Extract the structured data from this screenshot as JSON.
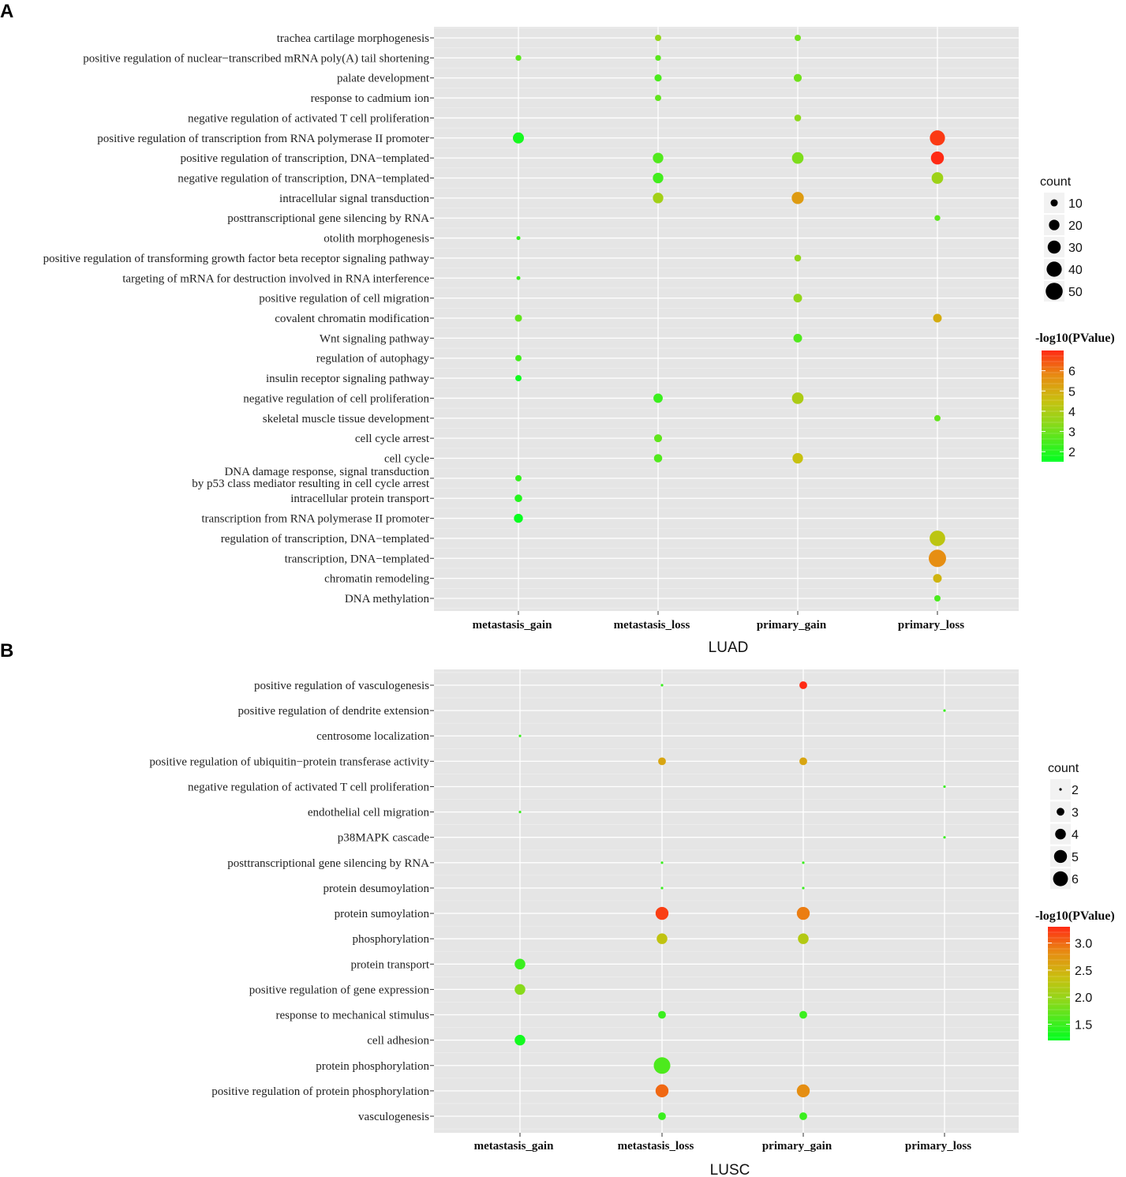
{
  "chart_data": [
    {
      "type": "scatter",
      "panel_letter": "A",
      "xlabel": "LUAD",
      "categories": [
        "metastasis_gain",
        "metastasis_loss",
        "primary_gain",
        "primary_loss"
      ],
      "terms": [
        [
          "trachea cartilage morphogenesis"
        ],
        [
          "positive regulation of nuclear−transcribed mRNA poly(A) tail shortening"
        ],
        [
          "palate development"
        ],
        [
          "response to cadmium ion"
        ],
        [
          "negative regulation of activated T cell proliferation"
        ],
        [
          "positive regulation of transcription from RNA polymerase II promoter"
        ],
        [
          "positive regulation of transcription, DNA−templated"
        ],
        [
          "negative regulation of transcription, DNA−templated"
        ],
        [
          "intracellular signal transduction"
        ],
        [
          "posttranscriptional gene silencing by RNA"
        ],
        [
          "otolith morphogenesis"
        ],
        [
          "positive regulation of transforming growth factor beta receptor signaling pathway"
        ],
        [
          "targeting of mRNA for destruction involved in RNA interference"
        ],
        [
          "positive regulation of cell migration"
        ],
        [
          "covalent chromatin modification"
        ],
        [
          "Wnt signaling pathway"
        ],
        [
          "regulation of autophagy"
        ],
        [
          "insulin receptor signaling pathway"
        ],
        [
          "negative regulation of cell proliferation"
        ],
        [
          "skeletal muscle tissue development"
        ],
        [
          "cell cycle arrest"
        ],
        [
          "cell cycle"
        ],
        [
          "DNA damage response, signal transduction",
          "by p53 class mediator resulting in cell cycle arrest"
        ],
        [
          "intracellular protein transport"
        ],
        [
          "transcription from RNA polymerase II promoter"
        ],
        [
          "regulation of transcription, DNA−templated"
        ],
        [
          "transcription, DNA−templated"
        ],
        [
          "chromatin remodeling"
        ],
        [
          "DNA methylation"
        ]
      ],
      "points": [
        {
          "term": 0,
          "cat": 1,
          "count": 8,
          "logp": 3.5
        },
        {
          "term": 0,
          "cat": 2,
          "count": 8,
          "logp": 3.0
        },
        {
          "term": 1,
          "cat": 0,
          "count": 7,
          "logp": 2.7
        },
        {
          "term": 1,
          "cat": 1,
          "count": 7,
          "logp": 2.7
        },
        {
          "term": 2,
          "cat": 1,
          "count": 10,
          "logp": 2.5
        },
        {
          "term": 2,
          "cat": 2,
          "count": 12,
          "logp": 3.0
        },
        {
          "term": 3,
          "cat": 1,
          "count": 8,
          "logp": 2.8
        },
        {
          "term": 4,
          "cat": 2,
          "count": 9,
          "logp": 3.4
        },
        {
          "term": 5,
          "cat": 0,
          "count": 22,
          "logp": 1.8
        },
        {
          "term": 5,
          "cat": 3,
          "count": 40,
          "logp": 6.8
        },
        {
          "term": 6,
          "cat": 1,
          "count": 20,
          "logp": 2.6
        },
        {
          "term": 6,
          "cat": 2,
          "count": 24,
          "logp": 3.2
        },
        {
          "term": 6,
          "cat": 3,
          "count": 30,
          "logp": 7.0
        },
        {
          "term": 7,
          "cat": 1,
          "count": 20,
          "logp": 2.4
        },
        {
          "term": 7,
          "cat": 3,
          "count": 24,
          "logp": 3.7
        },
        {
          "term": 8,
          "cat": 1,
          "count": 20,
          "logp": 3.8
        },
        {
          "term": 8,
          "cat": 2,
          "count": 26,
          "logp": 5.4
        },
        {
          "term": 9,
          "cat": 3,
          "count": 7,
          "logp": 2.7
        },
        {
          "term": 10,
          "cat": 0,
          "count": 4,
          "logp": 2.2
        },
        {
          "term": 11,
          "cat": 2,
          "count": 9,
          "logp": 3.5
        },
        {
          "term": 12,
          "cat": 0,
          "count": 4,
          "logp": 2.3
        },
        {
          "term": 13,
          "cat": 2,
          "count": 14,
          "logp": 3.5
        },
        {
          "term": 14,
          "cat": 0,
          "count": 10,
          "logp": 2.8
        },
        {
          "term": 14,
          "cat": 3,
          "count": 14,
          "logp": 5.0
        },
        {
          "term": 15,
          "cat": 2,
          "count": 14,
          "logp": 2.6
        },
        {
          "term": 16,
          "cat": 0,
          "count": 8,
          "logp": 2.4
        },
        {
          "term": 17,
          "cat": 0,
          "count": 8,
          "logp": 1.7
        },
        {
          "term": 18,
          "cat": 1,
          "count": 16,
          "logp": 2.3
        },
        {
          "term": 18,
          "cat": 2,
          "count": 24,
          "logp": 4.0
        },
        {
          "term": 19,
          "cat": 3,
          "count": 8,
          "logp": 2.8
        },
        {
          "term": 20,
          "cat": 1,
          "count": 12,
          "logp": 2.8
        },
        {
          "term": 21,
          "cat": 1,
          "count": 13,
          "logp": 2.6
        },
        {
          "term": 21,
          "cat": 2,
          "count": 20,
          "logp": 4.5
        },
        {
          "term": 22,
          "cat": 0,
          "count": 8,
          "logp": 2.2
        },
        {
          "term": 23,
          "cat": 0,
          "count": 11,
          "logp": 2.0
        },
        {
          "term": 24,
          "cat": 0,
          "count": 15,
          "logp": 1.6
        },
        {
          "term": 25,
          "cat": 3,
          "count": 42,
          "logp": 4.3
        },
        {
          "term": 26,
          "cat": 3,
          "count": 52,
          "logp": 5.7
        },
        {
          "term": 27,
          "cat": 3,
          "count": 14,
          "logp": 4.8
        },
        {
          "term": 28,
          "cat": 3,
          "count": 8,
          "logp": 2.5
        }
      ],
      "size_legend": {
        "title": "count",
        "values": [
          10,
          20,
          30,
          40,
          50
        ]
      },
      "color_legend": {
        "title": "-log10(PValue)",
        "range": [
          1.5,
          7.0
        ],
        "ticks": [
          2,
          3,
          4,
          5,
          6
        ],
        "tick_labels": [
          "2",
          "3",
          "4",
          "5",
          "6"
        ]
      }
    },
    {
      "type": "scatter",
      "panel_letter": "B",
      "xlabel": "LUSC",
      "categories": [
        "metastasis_gain",
        "metastasis_loss",
        "primary_gain",
        "primary_loss"
      ],
      "terms": [
        [
          "positive regulation of vasculogenesis"
        ],
        [
          "positive regulation of dendrite extension"
        ],
        [
          "centrosome localization"
        ],
        [
          "positive regulation of ubiquitin−protein transferase activity"
        ],
        [
          "negative regulation of activated T cell proliferation"
        ],
        [
          "endothelial cell migration"
        ],
        [
          "p38MAPK cascade"
        ],
        [
          "posttranscriptional gene silencing by RNA"
        ],
        [
          "protein desumoylation"
        ],
        [
          "protein sumoylation"
        ],
        [
          "phosphorylation"
        ],
        [
          "protein transport"
        ],
        [
          "positive regulation of gene expression"
        ],
        [
          "response to mechanical stimulus"
        ],
        [
          "cell adhesion"
        ],
        [
          "protein phosphorylation"
        ],
        [
          "positive regulation of protein phosphorylation"
        ],
        [
          "vasculogenesis"
        ]
      ],
      "points": [
        {
          "term": 0,
          "cat": 1,
          "count": 2,
          "logp": 1.5
        },
        {
          "term": 0,
          "cat": 2,
          "count": 3,
          "logp": 3.3
        },
        {
          "term": 1,
          "cat": 3,
          "count": 2,
          "logp": 1.5
        },
        {
          "term": 2,
          "cat": 0,
          "count": 2,
          "logp": 1.5
        },
        {
          "term": 3,
          "cat": 1,
          "count": 3,
          "logp": 2.6
        },
        {
          "term": 3,
          "cat": 2,
          "count": 3,
          "logp": 2.6
        },
        {
          "term": 4,
          "cat": 3,
          "count": 2,
          "logp": 1.5
        },
        {
          "term": 5,
          "cat": 0,
          "count": 2,
          "logp": 1.5
        },
        {
          "term": 6,
          "cat": 3,
          "count": 2,
          "logp": 1.5
        },
        {
          "term": 7,
          "cat": 1,
          "count": 2,
          "logp": 1.5
        },
        {
          "term": 7,
          "cat": 2,
          "count": 2,
          "logp": 1.5
        },
        {
          "term": 8,
          "cat": 1,
          "count": 2,
          "logp": 1.5
        },
        {
          "term": 8,
          "cat": 2,
          "count": 2,
          "logp": 1.5
        },
        {
          "term": 9,
          "cat": 1,
          "count": 5,
          "logp": 3.2
        },
        {
          "term": 9,
          "cat": 2,
          "count": 5,
          "logp": 2.9
        },
        {
          "term": 10,
          "cat": 1,
          "count": 4,
          "logp": 2.3
        },
        {
          "term": 10,
          "cat": 2,
          "count": 4,
          "logp": 2.2
        },
        {
          "term": 11,
          "cat": 0,
          "count": 4,
          "logp": 1.5
        },
        {
          "term": 12,
          "cat": 0,
          "count": 4,
          "logp": 1.9
        },
        {
          "term": 13,
          "cat": 1,
          "count": 3,
          "logp": 1.5
        },
        {
          "term": 13,
          "cat": 2,
          "count": 3,
          "logp": 1.5
        },
        {
          "term": 14,
          "cat": 0,
          "count": 4,
          "logp": 1.3
        },
        {
          "term": 15,
          "cat": 1,
          "count": 7,
          "logp": 1.6
        },
        {
          "term": 16,
          "cat": 1,
          "count": 5,
          "logp": 3.0
        },
        {
          "term": 16,
          "cat": 2,
          "count": 5,
          "logp": 2.8
        },
        {
          "term": 17,
          "cat": 1,
          "count": 3,
          "logp": 1.5
        },
        {
          "term": 17,
          "cat": 2,
          "count": 3,
          "logp": 1.5
        }
      ],
      "size_legend": {
        "title": "count",
        "values": [
          2,
          3,
          4,
          5,
          6
        ]
      },
      "color_legend": {
        "title": "-log10(PValue)",
        "range": [
          1.2,
          3.3
        ],
        "ticks": [
          1.5,
          2.0,
          2.5,
          3.0
        ],
        "tick_labels": [
          "1.5",
          "2.0",
          "2.5",
          "3.0"
        ]
      }
    }
  ]
}
